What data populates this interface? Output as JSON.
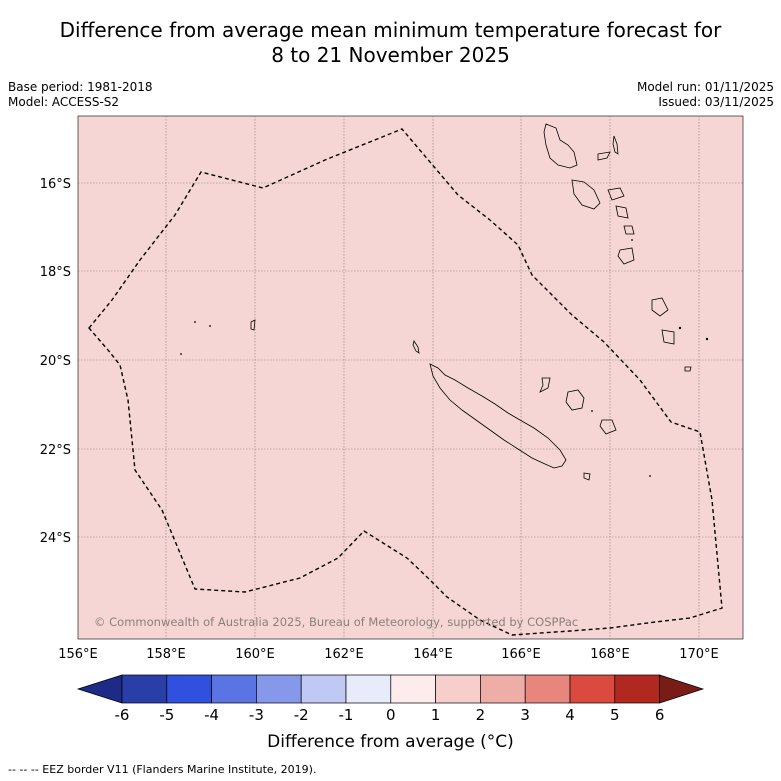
{
  "header": {
    "title_line1": "Difference from average mean minimum temperature forecast for",
    "title_line2": "8 to 21 November 2025",
    "base_period": "Base period: 1981-2018",
    "model": "Model: ACCESS-S2",
    "model_run": "Model run: 01/11/2025",
    "issued": "Issued: 03/11/2025"
  },
  "map": {
    "lat_labels": [
      "16°S",
      "18°S",
      "20°S",
      "22°S",
      "24°S"
    ],
    "lon_labels": [
      "156°E",
      "158°E",
      "160°E",
      "162°E",
      "164°E",
      "166°E",
      "168°E",
      "170°E"
    ],
    "copyright": "© Commonwealth of Australia 2025, Bureau of Meteorology, supported by COSPPac",
    "fill_color": "#f5d6d4"
  },
  "colorbar": {
    "ticks": [
      "-6",
      "-5",
      "-4",
      "-3",
      "-2",
      "-1",
      "0",
      "1",
      "2",
      "3",
      "4",
      "5",
      "6"
    ],
    "colors": [
      "#2a3ea8",
      "#3050e0",
      "#5a74e4",
      "#8698ea",
      "#c0c8f4",
      "#e8ecfa",
      "#fdeceb",
      "#f6cfcc",
      "#efada7",
      "#e8857d",
      "#db4a3f",
      "#b0281f"
    ],
    "low_color": "#1c2b88",
    "high_color": "#7a1c16",
    "label": "Difference from average (°C)"
  },
  "footnote": "-- -- -- EEZ border V11 (Flanders Marine Institute, 2019)."
}
